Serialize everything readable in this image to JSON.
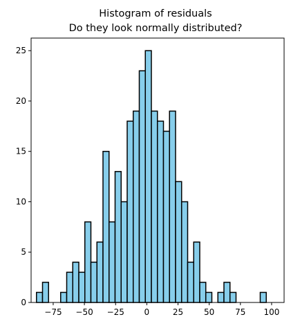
{
  "chart_data": {
    "type": "bar",
    "subtype": "histogram",
    "title_line1": "Histogram of residuals",
    "title_line2": "Do they look normally distributed?",
    "xlabel": "",
    "ylabel": "",
    "xlim": [
      -92.7,
      110.0
    ],
    "ylim": [
      0,
      26.25
    ],
    "xticks": [
      -75,
      -50,
      -25,
      0,
      25,
      50,
      75,
      100
    ],
    "xtick_labels": [
      "−75",
      "−50",
      "−25",
      "0",
      "25",
      "50",
      "75",
      "100"
    ],
    "yticks": [
      0,
      5,
      10,
      15,
      20,
      25
    ],
    "ytick_labels": [
      "0",
      "5",
      "10",
      "15",
      "20",
      "25"
    ],
    "bin_start": -88.4,
    "bin_width": 4.845,
    "values": [
      1,
      2,
      0,
      0,
      1,
      3,
      4,
      3,
      8,
      4,
      6,
      15,
      8,
      13,
      10,
      18,
      19,
      23,
      25,
      19,
      18,
      17,
      19,
      12,
      10,
      4,
      6,
      2,
      1,
      0,
      1,
      2,
      1,
      0,
      0,
      0,
      0,
      1
    ],
    "bar_color": "#87CEEB",
    "edge_color": "#000000",
    "grid": false
  }
}
